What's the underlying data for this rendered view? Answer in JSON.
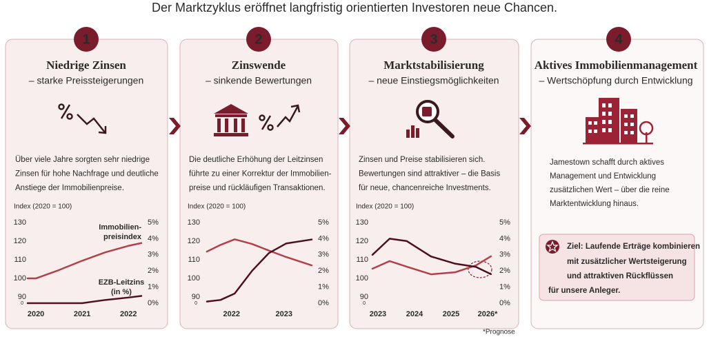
{
  "title": "Der Marktzyklus eröffnet langfristig orientierten Investoren neue Chancen.",
  "panels": [
    {
      "number": "1",
      "heading": "Niedrige Zinsen",
      "subheading": "– starke Preissteigerungen",
      "body": [
        "Über viele Jahre sorgten sehr niedrige",
        "Zinsen für hohe Nachfrage und deutliche",
        "Anstiege der Immobilienpreise."
      ],
      "chart": {
        "type": "line",
        "y_label": "Index (2020 = 100)",
        "x": [
          2019.82,
          2020,
          2020.5,
          2021,
          2021.5,
          2022,
          2022.28
        ],
        "xlim": [
          2019.82,
          2022.28
        ],
        "xticks": [
          2020,
          2021,
          2022
        ],
        "ylim": [
          86.7,
          130
        ],
        "yticks": [
          90,
          100,
          110,
          120,
          130
        ],
        "y_break_label": "0",
        "y2lim": [
          0,
          5
        ],
        "y2ticks": [
          {
            "value": 0,
            "label": "0%"
          },
          {
            "value": 1,
            "label": "1%"
          },
          {
            "value": 2,
            "label": "2%"
          },
          {
            "value": 3,
            "label": "3%"
          },
          {
            "value": 4,
            "label": "4%"
          },
          {
            "value": 5,
            "label": "5%"
          }
        ],
        "series": [
          {
            "label_lines": [
              "Immobilien-",
              "preisindex"
            ],
            "color": "#b2404a",
            "values": [
              100,
              100,
              104.5,
              109.5,
              114,
              117.5,
              119
            ]
          },
          {
            "label_lines": [
              "EZB-Leitzins",
              "(in %)"
            ],
            "color": "#4d0f1f",
            "axis": "y2",
            "values": [
              0,
              0,
              0,
              0,
              0.2,
              0.35,
              0.45
            ]
          }
        ]
      }
    },
    {
      "number": "2",
      "heading": "Zinswende",
      "subheading": "– sinkende Bewertungen",
      "body": [
        "Die deutliche Erhöhung der Leitzinsen",
        "führte zu einer Korrektur der Immobilien-",
        "preise und rückläufigen Transaktionen."
      ],
      "chart": {
        "type": "line",
        "y_label": "Index (2020 = 100)",
        "x": [
          2021.53,
          2021.79,
          2022.06,
          2022.39,
          2022.71,
          2023.04,
          2023.53
        ],
        "xlim": [
          2021.53,
          2023.53
        ],
        "xticks": [
          2022,
          2023
        ],
        "ylim": [
          86.7,
          130
        ],
        "yticks": [
          90,
          100,
          110,
          120,
          130
        ],
        "y_break_label": "0",
        "y2lim": [
          0,
          5
        ],
        "y2ticks": [
          {
            "value": 0,
            "label": "0%"
          },
          {
            "value": 1,
            "label": "1%"
          },
          {
            "value": 2,
            "label": "2%"
          },
          {
            "value": 3,
            "label": "3%"
          },
          {
            "value": 4,
            "label": "4%"
          },
          {
            "value": 5,
            "label": "5%"
          }
        ],
        "series": [
          {
            "color": "#b2404a",
            "values": [
              114.4,
              118,
              121,
              118.5,
              115,
              111.5,
              107
            ]
          },
          {
            "color": "#4d0f1f",
            "axis": "y2",
            "values": [
              0.1,
              0.2,
              0.6,
              2.0,
              3.1,
              3.7,
              3.95
            ]
          }
        ]
      }
    },
    {
      "number": "3",
      "heading": "Marktstabilisierung",
      "subheading": "– neue Einstiegsmöglichkeiten",
      "body": [
        "Zinsen und Preise stabilisieren sich.",
        "Bewertungen sind attraktiver – die Basis",
        "für neue, chancenreiche Investments."
      ],
      "chart": {
        "type": "line",
        "y_label": "Index (2020 = 100)",
        "x": [
          2022.85,
          2023.32,
          2023.79,
          2024.45,
          2025.11,
          2025.68,
          2026.09
        ],
        "xlim": [
          2022.85,
          2026.15
        ],
        "xticks": [
          2023,
          2024,
          2025,
          {
            "value": 2026,
            "label": "2026*"
          }
        ],
        "ylim": [
          86.7,
          130
        ],
        "yticks": [
          90,
          100,
          110,
          120,
          130
        ],
        "y_break_label": "0",
        "y2lim": [
          0,
          5
        ],
        "y2ticks": [
          {
            "value": 0,
            "label": "0%"
          },
          {
            "value": 1,
            "label": "1%"
          },
          {
            "value": 2,
            "label": "2%"
          },
          {
            "value": 3,
            "label": "3%"
          },
          {
            "value": 4,
            "label": "4%"
          },
          {
            "value": 5,
            "label": "5%"
          }
        ],
        "series": [
          {
            "color": "#b2404a",
            "values": [
              105.2,
              109.3,
              106.3,
              102.2,
              103.3,
              107,
              111.9
            ]
          },
          {
            "color": "#4d0f1f",
            "axis": "y2",
            "values": [
              3.0,
              4.0,
              3.85,
              2.9,
              2.45,
              2.25,
              1.8
            ]
          }
        ]
      }
    },
    {
      "number": "4",
      "heading": "Aktives Immobilienmanagement",
      "subheading": "– Wertschöpfung durch Entwicklung",
      "body": [
        "Jamestown schafft durch aktives",
        "Management und Entwicklung",
        "zusätzlichen Wert – über die reine",
        "Marktentwicklung hinaus."
      ],
      "goal": [
        "Ziel: Laufende Erträge kombinieren",
        "mit zusätzlicher Wertsteigerung",
        "und attraktiven Rückflüssen",
        "für unsere Anleger."
      ]
    }
  ],
  "footnote": "*Prognose"
}
